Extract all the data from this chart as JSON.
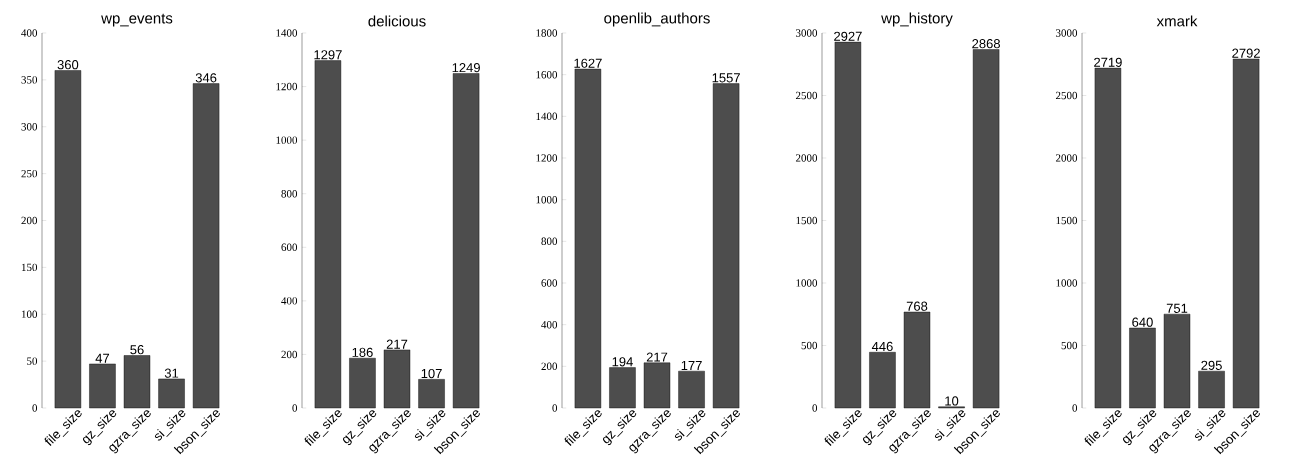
{
  "chart_data": [
    {
      "type": "bar",
      "title": "wp_events",
      "categories": [
        "file_size",
        "gz_size",
        "gzra_size",
        "si_size",
        "bson_size"
      ],
      "values": [
        360,
        47,
        56,
        31,
        346
      ],
      "color": "#4d4d4d",
      "ylim": [
        0,
        400
      ],
      "yticks": [
        0,
        50,
        100,
        150,
        200,
        250,
        300,
        350,
        400
      ],
      "data_labels": true
    },
    {
      "type": "bar",
      "title": "delicious",
      "categories": [
        "file_size",
        "gz_size",
        "gzra_size",
        "si_size",
        "bson_size"
      ],
      "values": [
        1297,
        186,
        217,
        107,
        1249
      ],
      "color": "#4d4d4d",
      "ylim": [
        0,
        1400
      ],
      "yticks": [
        0,
        200,
        400,
        600,
        800,
        1000,
        1200,
        1400
      ],
      "data_labels": true
    },
    {
      "type": "bar",
      "title": "openlib_authors",
      "categories": [
        "file_size",
        "gz_size",
        "gzra_size",
        "si_size",
        "bson_size"
      ],
      "values": [
        1627,
        194,
        217,
        177,
        1557
      ],
      "color": "#4d4d4d",
      "ylim": [
        0,
        1800
      ],
      "yticks": [
        0,
        200,
        400,
        600,
        800,
        1000,
        1200,
        1400,
        1600,
        1800
      ],
      "data_labels": true
    },
    {
      "type": "bar",
      "title": "wp_history",
      "categories": [
        "file_size",
        "gz_size",
        "gzra_size",
        "si_size",
        "bson_size"
      ],
      "values": [
        2927,
        446,
        768,
        10,
        2868
      ],
      "color": "#4d4d4d",
      "ylim": [
        0,
        3000
      ],
      "yticks": [
        0,
        500,
        1000,
        1500,
        2000,
        2500,
        3000
      ],
      "data_labels": true
    },
    {
      "type": "bar",
      "title": "xmark",
      "categories": [
        "file_size",
        "gz_size",
        "gzra_size",
        "si_size",
        "bson_size"
      ],
      "values": [
        2719,
        640,
        751,
        295,
        2792
      ],
      "color": "#4d4d4d",
      "ylim": [
        0,
        3000
      ],
      "yticks": [
        0,
        500,
        1000,
        1500,
        2000,
        2500,
        3000
      ],
      "data_labels": true
    }
  ]
}
